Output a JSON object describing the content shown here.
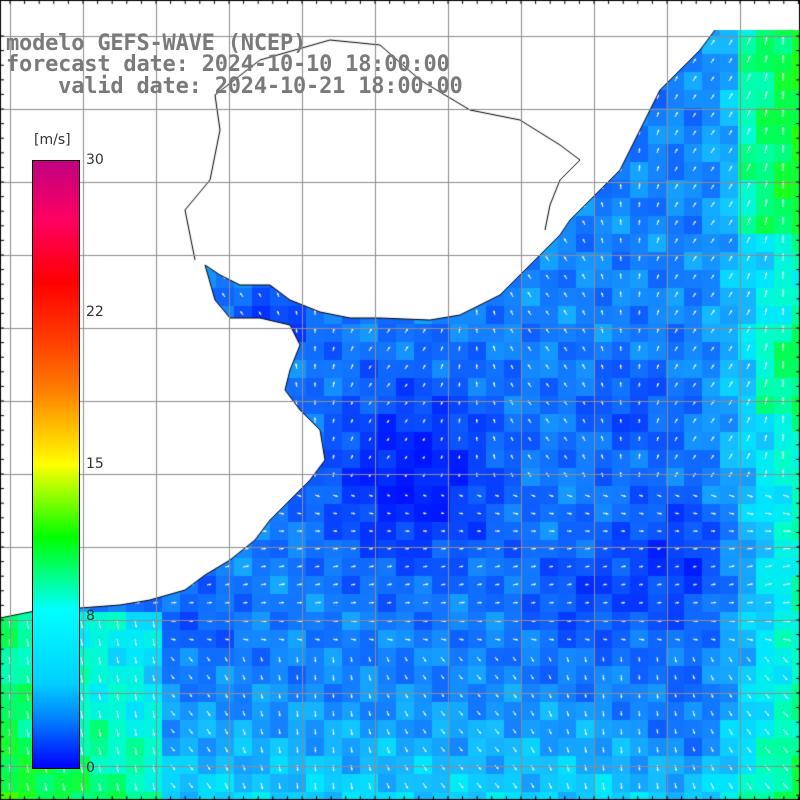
{
  "title": {
    "model": "modelo GEFS-WAVE (NCEP)",
    "forecast": "forecast date: 2024-10-10 18:00:00",
    "valid": "    valid date: 2024-10-21 18:00:00"
  },
  "colorbar": {
    "unit": "[m/s]",
    "ticks": [
      {
        "label": "30",
        "value": 30
      },
      {
        "label": "22",
        "value": 22
      },
      {
        "label": "15",
        "value": 15
      },
      {
        "label": "8",
        "value": 8
      },
      {
        "label": "0",
        "value": 0
      }
    ],
    "min": 0,
    "max": 30
  },
  "colors": {
    "deep_blue": "#0014ff",
    "mid_blue": "#0a55ff",
    "light_blue": "#1ea0ff",
    "cyan": "#00e6ff",
    "green": "#20ff40",
    "land": "#ffffff",
    "grid": "#8c8c8c",
    "title": "#7a7a7a"
  }
}
